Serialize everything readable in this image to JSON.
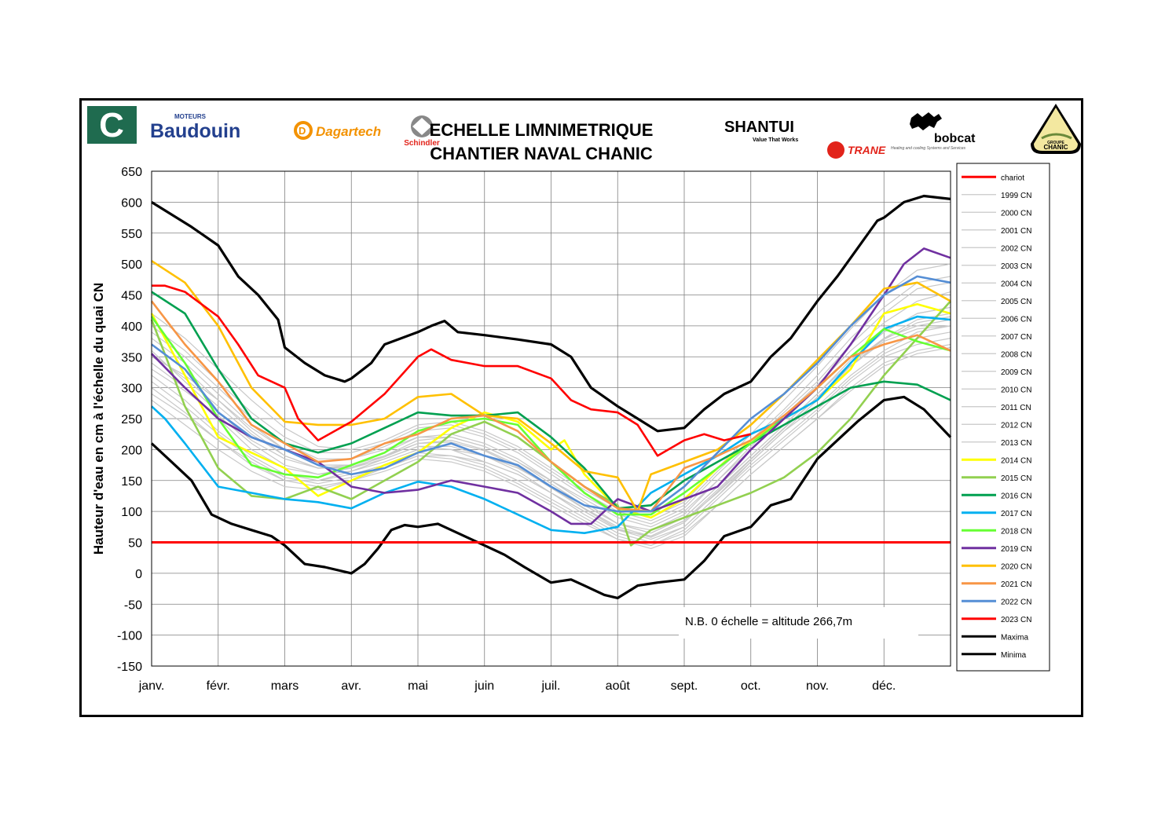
{
  "header": {
    "title_line1": "ECHELLE  LIMNIMETRIQUE",
    "title_line2": "CHANTIER NAVAL CHANIC",
    "sponsors": {
      "c_logo": "C",
      "baudouin_small": "MOTEURS",
      "baudouin": "Baudouin",
      "dagartech_d": "D",
      "dagartech": "Dagartech",
      "schindler": "Schindler",
      "shantui": "SHANTUI",
      "shantui_tagline": "Value That Works",
      "trane": "TRANE",
      "trane_tagline": "Heating and cooling Systems and Services",
      "bobcat": "bobcat",
      "chanic_groupe": "GROUPE",
      "chanic": "CHANIC"
    },
    "colors": {
      "c_logo": "#1f6b4f",
      "baudouin": "#23408e",
      "dagartech": "#f39200",
      "trane": "#e2231a"
    }
  },
  "chart_data": {
    "type": "line",
    "ylabel": "Hauteur d'eau en cm à l'échelle du quai CN",
    "ylim": [
      -150,
      650
    ],
    "yticks": [
      650,
      600,
      550,
      500,
      450,
      400,
      350,
      300,
      250,
      200,
      150,
      100,
      50,
      0,
      -50,
      -100,
      -150
    ],
    "x_categories": [
      "janv.",
      "févr.",
      "mars",
      "avr.",
      "mai",
      "juin",
      "juil.",
      "août",
      "sept.",
      "oct.",
      "nov.",
      "déc."
    ],
    "xlim_months": [
      0,
      12
    ],
    "grid": true,
    "legend_placement": "right",
    "annotation": "N.B.  0 échelle = altitude 266,7m",
    "chariot": {
      "name": "chariot",
      "value": 50,
      "color": "#ff0000"
    },
    "historic_band": {
      "names": [
        "1999 CN",
        "2000 CN",
        "2001 CN",
        "2002 CN",
        "2003 CN",
        "2004 CN",
        "2005 CN",
        "2006 CN",
        "2007 CN",
        "2008 CN",
        "2009 CN",
        "2010 CN",
        "2011 CN",
        "2012 CN",
        "2013 CN"
      ],
      "color": "#c8c8c8",
      "x": [
        0,
        0.5,
        1,
        1.5,
        2,
        2.5,
        3,
        3.5,
        4,
        4.5,
        5,
        5.5,
        6,
        6.5,
        7,
        7.5,
        8,
        8.5,
        9,
        9.5,
        10,
        10.5,
        11,
        11.5,
        12
      ],
      "series": [
        [
          300,
          260,
          215,
          175,
          150,
          150,
          165,
          185,
          205,
          200,
          180,
          160,
          130,
          100,
          70,
          60,
          85,
          130,
          180,
          230,
          270,
          320,
          360,
          390,
          400
        ],
        [
          340,
          300,
          250,
          200,
          170,
          160,
          170,
          190,
          215,
          220,
          205,
          180,
          150,
          120,
          90,
          75,
          100,
          150,
          200,
          250,
          300,
          350,
          390,
          420,
          430
        ],
        [
          380,
          340,
          290,
          240,
          200,
          180,
          185,
          205,
          230,
          235,
          220,
          195,
          160,
          125,
          95,
          80,
          105,
          160,
          210,
          260,
          310,
          370,
          420,
          460,
          470
        ],
        [
          320,
          280,
          230,
          190,
          160,
          150,
          160,
          175,
          195,
          190,
          175,
          150,
          120,
          90,
          60,
          45,
          70,
          120,
          170,
          215,
          260,
          310,
          350,
          370,
          380
        ],
        [
          360,
          310,
          260,
          215,
          185,
          170,
          175,
          195,
          220,
          225,
          210,
          185,
          150,
          115,
          80,
          65,
          90,
          140,
          190,
          240,
          290,
          340,
          380,
          400,
          410
        ],
        [
          400,
          360,
          310,
          260,
          220,
          195,
          195,
          210,
          235,
          240,
          225,
          200,
          165,
          130,
          100,
          85,
          110,
          165,
          215,
          265,
          320,
          380,
          430,
          470,
          480
        ],
        [
          280,
          240,
          200,
          165,
          140,
          135,
          150,
          170,
          190,
          185,
          170,
          145,
          115,
          85,
          55,
          40,
          60,
          110,
          160,
          205,
          250,
          300,
          340,
          360,
          370
        ],
        [
          350,
          320,
          280,
          235,
          200,
          175,
          175,
          190,
          210,
          215,
          200,
          175,
          140,
          105,
          75,
          60,
          85,
          135,
          185,
          235,
          285,
          335,
          375,
          395,
          400
        ],
        [
          420,
          380,
          330,
          280,
          235,
          205,
          200,
          215,
          240,
          245,
          230,
          205,
          170,
          135,
          105,
          90,
          115,
          170,
          225,
          280,
          335,
          395,
          450,
          490,
          500
        ],
        [
          310,
          270,
          225,
          185,
          155,
          145,
          155,
          170,
          190,
          190,
          180,
          160,
          130,
          100,
          70,
          55,
          75,
          125,
          175,
          220,
          265,
          315,
          355,
          380,
          390
        ],
        [
          370,
          330,
          280,
          230,
          190,
          170,
          170,
          185,
          205,
          205,
          190,
          165,
          130,
          95,
          65,
          50,
          75,
          125,
          180,
          230,
          280,
          335,
          380,
          410,
          420
        ],
        [
          330,
          295,
          255,
          210,
          175,
          160,
          165,
          180,
          200,
          200,
          190,
          170,
          140,
          110,
          80,
          65,
          90,
          140,
          190,
          240,
          290,
          345,
          390,
          420,
          430
        ],
        [
          390,
          350,
          300,
          250,
          210,
          185,
          185,
          200,
          220,
          220,
          205,
          180,
          145,
          110,
          80,
          70,
          95,
          150,
          205,
          255,
          305,
          360,
          405,
          440,
          455
        ],
        [
          290,
          255,
          215,
          180,
          150,
          140,
          150,
          165,
          185,
          180,
          165,
          140,
          110,
          80,
          55,
          45,
          65,
          110,
          160,
          205,
          250,
          295,
          335,
          355,
          365
        ],
        [
          355,
          315,
          270,
          225,
          190,
          170,
          172,
          188,
          210,
          212,
          198,
          172,
          138,
          104,
          72,
          58,
          82,
          132,
          184,
          234,
          284,
          336,
          378,
          405,
          415
        ]
      ]
    },
    "series": [
      {
        "name": "2014 CN",
        "color": "#ffff00",
        "x": [
          0,
          0.5,
          1,
          1.5,
          2,
          2.5,
          3,
          3.5,
          4,
          4.5,
          5,
          5.5,
          6,
          6.2,
          6.5,
          7,
          7.5,
          8,
          8.5,
          9,
          9.5,
          10,
          10.5,
          11,
          11.5,
          12
        ],
        "y": [
          420,
          320,
          220,
          195,
          170,
          125,
          150,
          175,
          195,
          235,
          260,
          245,
          200,
          215,
          160,
          105,
          90,
          120,
          170,
          215,
          250,
          280,
          330,
          420,
          435,
          420
        ]
      },
      {
        "name": "2015 CN",
        "color": "#92d050",
        "x": [
          0,
          0.5,
          1,
          1.5,
          2,
          2.5,
          3,
          3.5,
          4,
          4.5,
          5,
          5.5,
          6,
          6.5,
          7,
          7.2,
          7.5,
          8,
          8.5,
          9,
          9.5,
          10,
          10.5,
          11,
          11.5,
          12
        ],
        "y": [
          410,
          270,
          170,
          125,
          120,
          140,
          120,
          150,
          180,
          225,
          245,
          220,
          180,
          140,
          110,
          45,
          70,
          90,
          110,
          130,
          155,
          195,
          250,
          320,
          380,
          440
        ]
      },
      {
        "name": "2016 CN",
        "color": "#00a050",
        "x": [
          0,
          0.5,
          1,
          1.5,
          2,
          2.5,
          3,
          3.5,
          4,
          4.5,
          5,
          5.5,
          6,
          6.5,
          7,
          7.5,
          8,
          8.5,
          9,
          9.5,
          10,
          10.5,
          11,
          11.5,
          12
        ],
        "y": [
          455,
          420,
          330,
          250,
          210,
          195,
          210,
          235,
          260,
          255,
          255,
          260,
          220,
          170,
          105,
          110,
          150,
          180,
          210,
          240,
          270,
          300,
          310,
          305,
          280
        ]
      },
      {
        "name": "2017 CN",
        "color": "#00b0f0",
        "x": [
          0,
          0.2,
          0.5,
          1,
          1.5,
          2,
          2.5,
          3,
          3.5,
          4,
          4.5,
          5,
          5.5,
          6,
          6.5,
          7,
          7.5,
          8,
          8.5,
          9,
          9.5,
          10,
          10.5,
          11,
          11.5,
          12
        ],
        "y": [
          270,
          250,
          210,
          140,
          130,
          120,
          115,
          105,
          130,
          148,
          140,
          120,
          95,
          70,
          65,
          75,
          130,
          160,
          190,
          225,
          250,
          280,
          340,
          395,
          415,
          410
        ]
      },
      {
        "name": "2018 CN",
        "color": "#66ff33",
        "x": [
          0,
          0.5,
          1,
          1.5,
          2,
          2.5,
          3,
          3.5,
          4,
          4.5,
          5,
          5.5,
          6,
          6.5,
          7,
          7.5,
          8,
          8.5,
          9,
          9.5,
          10,
          10.5,
          11,
          11.5,
          12
        ],
        "y": [
          415,
          340,
          250,
          175,
          160,
          155,
          175,
          195,
          230,
          245,
          250,
          240,
          180,
          130,
          95,
          95,
          130,
          170,
          210,
          250,
          300,
          350,
          395,
          375,
          360
        ]
      },
      {
        "name": "2019 CN",
        "color": "#7030a0",
        "x": [
          0,
          0.5,
          1,
          1.5,
          2,
          2.5,
          3,
          3.5,
          4,
          4.5,
          5,
          5.5,
          6,
          6.3,
          6.6,
          7,
          7.5,
          8,
          8.5,
          9,
          9.5,
          10,
          10.5,
          11,
          11.3,
          11.6,
          12
        ],
        "y": [
          355,
          300,
          250,
          220,
          200,
          180,
          140,
          130,
          135,
          150,
          140,
          130,
          100,
          80,
          80,
          120,
          100,
          120,
          140,
          200,
          250,
          300,
          370,
          450,
          500,
          525,
          510
        ]
      },
      {
        "name": "2020 CN",
        "color": "#ffc000",
        "x": [
          0,
          0.5,
          1,
          1.5,
          2,
          2.5,
          3,
          3.5,
          4,
          4.5,
          5,
          5.5,
          6,
          6.5,
          7,
          7.3,
          7.5,
          8,
          8.5,
          9,
          9.5,
          10,
          10.5,
          11,
          11.5,
          12
        ],
        "y": [
          505,
          470,
          400,
          300,
          245,
          240,
          240,
          250,
          285,
          290,
          255,
          250,
          210,
          165,
          155,
          100,
          160,
          180,
          200,
          240,
          290,
          345,
          400,
          460,
          470,
          440
        ]
      },
      {
        "name": "2021 CN",
        "color": "#f79646",
        "x": [
          0,
          0.5,
          1,
          1.5,
          2,
          2.5,
          3,
          3.5,
          4,
          4.5,
          5,
          5.5,
          6,
          6.5,
          7,
          7.5,
          8,
          8.5,
          9,
          9.5,
          10,
          10.5,
          11,
          11.5,
          12
        ],
        "y": [
          440,
          370,
          310,
          240,
          210,
          180,
          185,
          210,
          225,
          250,
          255,
          230,
          180,
          140,
          105,
          100,
          170,
          190,
          215,
          255,
          300,
          350,
          370,
          385,
          360
        ]
      },
      {
        "name": "2022 CN",
        "color": "#558ed5",
        "x": [
          0,
          0.5,
          1,
          1.5,
          2,
          2.5,
          3,
          3.5,
          4,
          4.5,
          5,
          5.5,
          6,
          6.5,
          7,
          7.5,
          8,
          8.5,
          9,
          9.5,
          10,
          10.5,
          11,
          11.5,
          12
        ],
        "y": [
          370,
          330,
          260,
          220,
          200,
          175,
          160,
          170,
          195,
          210,
          190,
          175,
          140,
          110,
          100,
          100,
          140,
          195,
          250,
          290,
          340,
          400,
          450,
          480,
          470
        ]
      },
      {
        "name": "2023 CN",
        "color": "#ff0000",
        "x": [
          0,
          0.2,
          0.5,
          1,
          1.3,
          1.6,
          2,
          2.2,
          2.5,
          3,
          3.5,
          4,
          4.2,
          4.5,
          5,
          5.5,
          6,
          6.3,
          6.6,
          7,
          7.3,
          7.6,
          8,
          8.3,
          8.6,
          9
        ],
        "y": [
          465,
          465,
          455,
          415,
          370,
          320,
          300,
          250,
          215,
          245,
          290,
          350,
          362,
          345,
          335,
          335,
          315,
          280,
          265,
          260,
          240,
          190,
          215,
          225,
          215,
          225
        ]
      },
      {
        "name": "Maxima",
        "color": "#000000",
        "x": [
          0,
          0.3,
          0.6,
          1,
          1.3,
          1.6,
          1.9,
          2,
          2.3,
          2.6,
          2.9,
          3,
          3.3,
          3.5,
          4,
          4.2,
          4.4,
          4.6,
          5,
          5.5,
          6,
          6.3,
          6.6,
          7,
          7.3,
          7.6,
          8,
          8.3,
          8.6,
          9,
          9.3,
          9.6,
          10,
          10.3,
          10.6,
          10.9,
          11,
          11.3,
          11.6,
          12
        ],
        "y": [
          600,
          580,
          560,
          530,
          480,
          450,
          410,
          365,
          340,
          320,
          310,
          315,
          340,
          370,
          390,
          400,
          408,
          390,
          385,
          378,
          370,
          350,
          300,
          270,
          250,
          230,
          235,
          265,
          290,
          310,
          350,
          380,
          440,
          480,
          525,
          570,
          575,
          600,
          610,
          605
        ]
      },
      {
        "name": "Minima",
        "color": "#000000",
        "x": [
          0,
          0.3,
          0.6,
          0.9,
          1.2,
          1.5,
          1.8,
          2,
          2.3,
          2.6,
          3,
          3.2,
          3.4,
          3.6,
          3.8,
          4,
          4.3,
          4.6,
          5,
          5.3,
          5.6,
          6,
          6.3,
          6.5,
          6.8,
          7,
          7.3,
          7.6,
          8,
          8.3,
          8.6,
          9,
          9.3,
          9.6,
          10,
          10.3,
          10.6,
          11,
          11.3,
          11.6,
          12
        ],
        "y": [
          210,
          180,
          150,
          95,
          80,
          70,
          60,
          45,
          15,
          10,
          0,
          15,
          40,
          70,
          78,
          75,
          80,
          65,
          45,
          30,
          10,
          -15,
          -10,
          -20,
          -35,
          -40,
          -20,
          -15,
          -10,
          20,
          60,
          75,
          110,
          120,
          185,
          215,
          245,
          280,
          285,
          265,
          220
        ]
      }
    ]
  }
}
